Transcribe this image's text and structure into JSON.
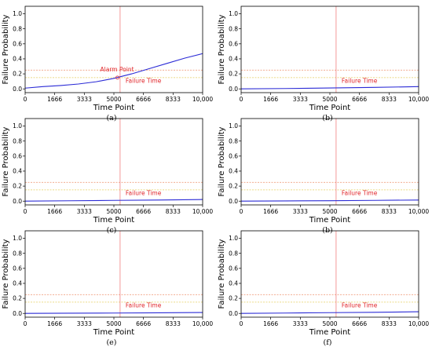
{
  "chart_data": [
    {
      "type": "line",
      "caption": "(a)",
      "xlabel": "Time Point",
      "ylabel": "Failure Probability",
      "xlim": [
        0,
        10000
      ],
      "ylim": [
        -0.05,
        1.1
      ],
      "xticks": [
        0,
        1666,
        3333,
        5000,
        6666,
        8333,
        10000
      ],
      "xtick_labels": [
        "0",
        "1666",
        "3333",
        "5000",
        "6666",
        "8333",
        "10,000"
      ],
      "yticks": [
        0.0,
        0.2,
        0.4,
        0.6,
        0.8,
        1.0
      ],
      "ytick_labels": [
        "0.0",
        "0.2",
        "0.4",
        "0.6",
        "0.8",
        "1.0"
      ],
      "thresholds": [
        0.15,
        0.25
      ],
      "failure_time": 5350,
      "failure_label": "Failure Time",
      "alarm_point": {
        "x": 5200,
        "y": 0.15
      },
      "alarm_label": "Alarm Point",
      "series": [
        {
          "x": [
            0,
            1000,
            2000,
            3000,
            4000,
            5000,
            6000,
            7000,
            8000,
            9000,
            10000
          ],
          "values": [
            0.01,
            0.03,
            0.045,
            0.065,
            0.095,
            0.14,
            0.2,
            0.27,
            0.34,
            0.41,
            0.47
          ]
        }
      ]
    },
    {
      "type": "line",
      "caption": "(b)",
      "xlabel": "Time Point",
      "ylabel": "Failure Probability",
      "xlim": [
        0,
        10000
      ],
      "ylim": [
        -0.05,
        1.1
      ],
      "xticks": [
        0,
        1666,
        3333,
        5000,
        6666,
        8333,
        10000
      ],
      "xtick_labels": [
        "0",
        "1666",
        "3333",
        "5000",
        "6666",
        "8333",
        "10,000"
      ],
      "yticks": [
        0.0,
        0.2,
        0.4,
        0.6,
        0.8,
        1.0
      ],
      "ytick_labels": [
        "0.0",
        "0.2",
        "0.4",
        "0.6",
        "0.8",
        "1.0"
      ],
      "thresholds": [
        0.15,
        0.25
      ],
      "failure_time": 5350,
      "failure_label": "Failure Time",
      "series": [
        {
          "x": [
            0,
            2500,
            5000,
            7500,
            10000
          ],
          "values": [
            0.0,
            0.005,
            0.012,
            0.02,
            0.03
          ]
        }
      ]
    },
    {
      "type": "line",
      "caption": "(c)",
      "xlabel": "Time Point",
      "ylabel": "Failure Probability",
      "xlim": [
        0,
        10000
      ],
      "ylim": [
        -0.05,
        1.1
      ],
      "xticks": [
        0,
        1666,
        3333,
        5000,
        6666,
        8333,
        10000
      ],
      "xtick_labels": [
        "0",
        "1666",
        "3333",
        "5000",
        "6666",
        "8333",
        "10,000"
      ],
      "yticks": [
        0.0,
        0.2,
        0.4,
        0.6,
        0.8,
        1.0
      ],
      "ytick_labels": [
        "0.0",
        "0.2",
        "0.4",
        "0.6",
        "0.8",
        "1.0"
      ],
      "thresholds": [
        0.15,
        0.25
      ],
      "failure_time": 5350,
      "failure_label": "Failure Time",
      "series": [
        {
          "x": [
            0,
            2500,
            5000,
            7500,
            10000
          ],
          "values": [
            0.0,
            0.005,
            0.01,
            0.015,
            0.022
          ]
        }
      ]
    },
    {
      "type": "line",
      "caption": "(b)",
      "xlabel": "Time Point",
      "ylabel": "Failure Probability",
      "xlim": [
        0,
        10000
      ],
      "ylim": [
        -0.05,
        1.1
      ],
      "xticks": [
        0,
        1666,
        3333,
        5000,
        6666,
        8333,
        10000
      ],
      "xtick_labels": [
        "0",
        "1666",
        "3333",
        "5000",
        "6666",
        "8333",
        "10,000"
      ],
      "yticks": [
        0.0,
        0.2,
        0.4,
        0.6,
        0.8,
        1.0
      ],
      "ytick_labels": [
        "0.0",
        "0.2",
        "0.4",
        "0.6",
        "0.8",
        "1.0"
      ],
      "thresholds": [
        0.15,
        0.25
      ],
      "failure_time": 5350,
      "failure_label": "Failure Time",
      "series": [
        {
          "x": [
            0,
            2500,
            5000,
            7500,
            10000
          ],
          "values": [
            0.0,
            0.003,
            0.006,
            0.01,
            0.015
          ]
        }
      ]
    },
    {
      "type": "line",
      "caption": "(e)",
      "xlabel": "Time Point",
      "ylabel": "Failure Probability",
      "xlim": [
        0,
        10000
      ],
      "ylim": [
        -0.05,
        1.1
      ],
      "xticks": [
        0,
        1666,
        3333,
        5000,
        6666,
        8333,
        10000
      ],
      "xtick_labels": [
        "0",
        "1666",
        "3333",
        "5000",
        "6666",
        "8333",
        "10,000"
      ],
      "yticks": [
        0.0,
        0.2,
        0.4,
        0.6,
        0.8,
        1.0
      ],
      "ytick_labels": [
        "0.0",
        "0.2",
        "0.4",
        "0.6",
        "0.8",
        "1.0"
      ],
      "thresholds": [
        0.15,
        0.25
      ],
      "failure_time": 5350,
      "failure_label": "Failure Time",
      "series": [
        {
          "x": [
            0,
            2500,
            5000,
            7500,
            10000
          ],
          "values": [
            0.0,
            0.003,
            0.005,
            0.008,
            0.012
          ]
        }
      ]
    },
    {
      "type": "line",
      "caption": "(f)",
      "xlabel": "Time Point",
      "ylabel": "Failure Probability",
      "xlim": [
        0,
        10000
      ],
      "ylim": [
        -0.05,
        1.1
      ],
      "xticks": [
        0,
        1666,
        3333,
        5000,
        6666,
        8333,
        10000
      ],
      "xtick_labels": [
        "0",
        "1666",
        "3333",
        "5000",
        "6666",
        "8333",
        "10,000"
      ],
      "yticks": [
        0.0,
        0.2,
        0.4,
        0.6,
        0.8,
        1.0
      ],
      "ytick_labels": [
        "0.0",
        "0.2",
        "0.4",
        "0.6",
        "0.8",
        "1.0"
      ],
      "thresholds": [
        0.15,
        0.25
      ],
      "failure_time": 5350,
      "failure_label": "Failure Time",
      "series": [
        {
          "x": [
            0,
            2500,
            5000,
            7500,
            10000
          ],
          "values": [
            0.0,
            0.005,
            0.01,
            0.015,
            0.022
          ]
        }
      ]
    }
  ],
  "colors": {
    "curve": "#2b2bd6",
    "failure_line": "#f08080",
    "threshold_upper": "#f0a080",
    "threshold_lower": "#e6cf60",
    "annotation": "#e0252a",
    "axis": "#000000"
  }
}
